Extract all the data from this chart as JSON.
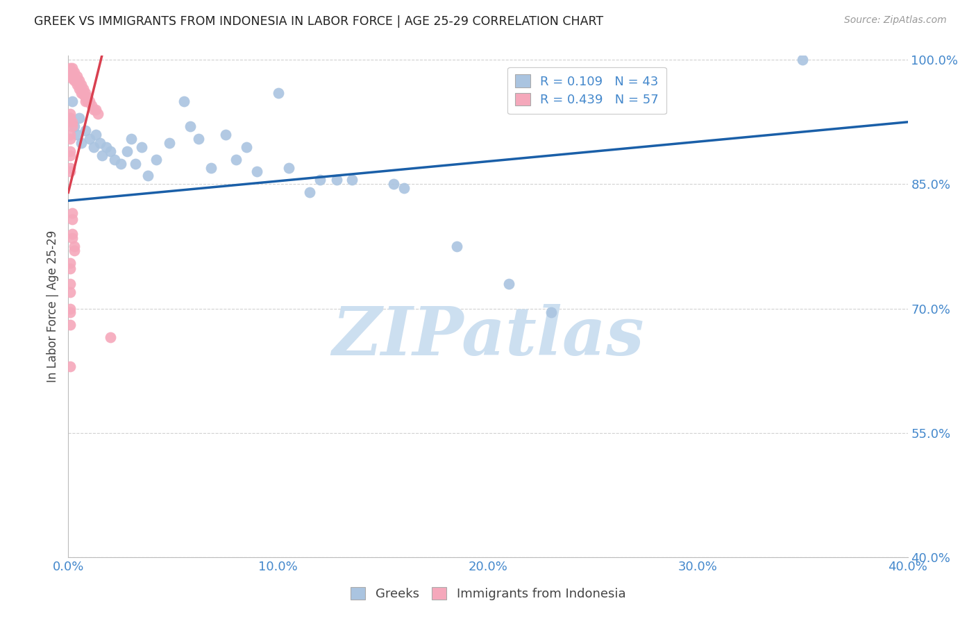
{
  "title": "GREEK VS IMMIGRANTS FROM INDONESIA IN LABOR FORCE | AGE 25-29 CORRELATION CHART",
  "source": "Source: ZipAtlas.com",
  "ylabel": "In Labor Force | Age 25-29",
  "xlim": [
    0.0,
    0.4
  ],
  "ylim": [
    0.4,
    1.005
  ],
  "xticks": [
    0.0,
    0.1,
    0.2,
    0.3,
    0.4
  ],
  "xtick_labels": [
    "0.0%",
    "10.0%",
    "20.0%",
    "30.0%",
    "40.0%"
  ],
  "yticks": [
    0.4,
    0.55,
    0.7,
    0.85,
    1.0
  ],
  "ytick_labels": [
    "40.0%",
    "55.0%",
    "70.0%",
    "85.0%",
    "100.0%"
  ],
  "watermark": "ZIPatlas",
  "legend_R_blue": "R = 0.109",
  "legend_N_blue": "N = 43",
  "legend_R_pink": "R = 0.439",
  "legend_N_pink": "N = 57",
  "legend_label_blue": "Greeks",
  "legend_label_pink": "Immigrants from Indonesia",
  "blue_color": "#aac4e0",
  "pink_color": "#f5a8bb",
  "trend_blue_color": "#1a5fa8",
  "trend_pink_color": "#d94050",
  "blue_scatter": [
    [
      0.001,
      0.93
    ],
    [
      0.002,
      0.95
    ],
    [
      0.003,
      0.92
    ],
    [
      0.004,
      0.91
    ],
    [
      0.005,
      0.93
    ],
    [
      0.006,
      0.9
    ],
    [
      0.008,
      0.915
    ],
    [
      0.01,
      0.905
    ],
    [
      0.012,
      0.895
    ],
    [
      0.013,
      0.91
    ],
    [
      0.015,
      0.9
    ],
    [
      0.016,
      0.885
    ],
    [
      0.018,
      0.895
    ],
    [
      0.02,
      0.89
    ],
    [
      0.022,
      0.88
    ],
    [
      0.025,
      0.875
    ],
    [
      0.028,
      0.89
    ],
    [
      0.03,
      0.905
    ],
    [
      0.032,
      0.875
    ],
    [
      0.035,
      0.895
    ],
    [
      0.038,
      0.86
    ],
    [
      0.042,
      0.88
    ],
    [
      0.048,
      0.9
    ],
    [
      0.055,
      0.95
    ],
    [
      0.058,
      0.92
    ],
    [
      0.062,
      0.905
    ],
    [
      0.068,
      0.87
    ],
    [
      0.075,
      0.91
    ],
    [
      0.08,
      0.88
    ],
    [
      0.085,
      0.895
    ],
    [
      0.09,
      0.865
    ],
    [
      0.1,
      0.96
    ],
    [
      0.105,
      0.87
    ],
    [
      0.115,
      0.84
    ],
    [
      0.12,
      0.855
    ],
    [
      0.128,
      0.855
    ],
    [
      0.135,
      0.855
    ],
    [
      0.155,
      0.85
    ],
    [
      0.16,
      0.845
    ],
    [
      0.185,
      0.775
    ],
    [
      0.21,
      0.73
    ],
    [
      0.23,
      0.695
    ],
    [
      0.35,
      1.0
    ]
  ],
  "pink_scatter": [
    [
      0.001,
      0.99
    ],
    [
      0.001,
      0.985
    ],
    [
      0.002,
      0.99
    ],
    [
      0.002,
      0.985
    ],
    [
      0.002,
      0.98
    ],
    [
      0.002,
      0.978
    ],
    [
      0.003,
      0.985
    ],
    [
      0.003,
      0.98
    ],
    [
      0.003,
      0.977
    ],
    [
      0.003,
      0.975
    ],
    [
      0.004,
      0.98
    ],
    [
      0.004,
      0.975
    ],
    [
      0.004,
      0.97
    ],
    [
      0.005,
      0.975
    ],
    [
      0.005,
      0.97
    ],
    [
      0.005,
      0.965
    ],
    [
      0.006,
      0.97
    ],
    [
      0.006,
      0.965
    ],
    [
      0.006,
      0.96
    ],
    [
      0.007,
      0.965
    ],
    [
      0.007,
      0.96
    ],
    [
      0.007,
      0.958
    ],
    [
      0.008,
      0.96
    ],
    [
      0.008,
      0.955
    ],
    [
      0.008,
      0.95
    ],
    [
      0.009,
      0.955
    ],
    [
      0.009,
      0.95
    ],
    [
      0.01,
      0.95
    ],
    [
      0.011,
      0.945
    ],
    [
      0.012,
      0.94
    ],
    [
      0.013,
      0.94
    ],
    [
      0.014,
      0.935
    ],
    [
      0.001,
      0.935
    ],
    [
      0.001,
      0.93
    ],
    [
      0.002,
      0.925
    ],
    [
      0.002,
      0.92
    ],
    [
      0.001,
      0.91
    ],
    [
      0.001,
      0.905
    ],
    [
      0.001,
      0.89
    ],
    [
      0.001,
      0.885
    ],
    [
      0.001,
      0.87
    ],
    [
      0.001,
      0.865
    ],
    [
      0.002,
      0.815
    ],
    [
      0.002,
      0.808
    ],
    [
      0.002,
      0.79
    ],
    [
      0.002,
      0.785
    ],
    [
      0.003,
      0.775
    ],
    [
      0.003,
      0.77
    ],
    [
      0.001,
      0.755
    ],
    [
      0.001,
      0.748
    ],
    [
      0.001,
      0.73
    ],
    [
      0.001,
      0.72
    ],
    [
      0.001,
      0.7
    ],
    [
      0.001,
      0.695
    ],
    [
      0.001,
      0.68
    ],
    [
      0.02,
      0.665
    ],
    [
      0.001,
      0.63
    ]
  ],
  "blue_trendline_x": [
    0.0,
    0.4
  ],
  "blue_trendline_y": [
    0.83,
    0.925
  ],
  "pink_trendline_x": [
    0.0,
    0.016
  ],
  "pink_trendline_y": [
    0.84,
    1.005
  ],
  "background_color": "#ffffff",
  "grid_color": "#cccccc",
  "title_color": "#222222",
  "axis_color": "#4488cc",
  "watermark_color": "#ccdff0"
}
